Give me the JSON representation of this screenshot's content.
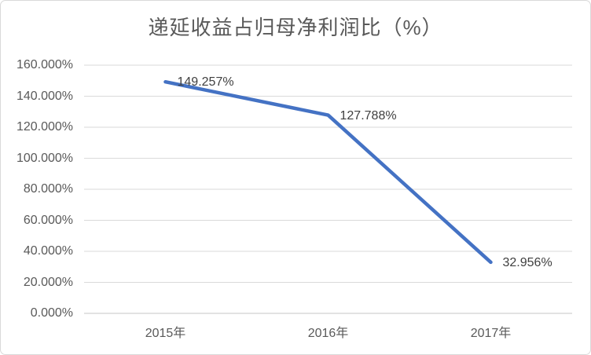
{
  "chart": {
    "title": "递延收益占归母净利润比（%）"
  },
  "chart_data": {
    "type": "line",
    "title": "递延收益占归母净利润比（%）",
    "categories": [
      "2015年",
      "2016年",
      "2017年"
    ],
    "values": [
      149.257,
      127.788,
      32.956
    ],
    "data_labels": [
      "149.257%",
      "127.788%",
      "32.956%"
    ],
    "y_tick_labels": [
      "160.000%",
      "140.000%",
      "120.000%",
      "100.000%",
      "80.000%",
      "60.000%",
      "40.000%",
      "20.000%",
      "0.000%"
    ],
    "ylim": [
      0,
      160
    ],
    "y_step": 20,
    "xlabel": "",
    "ylabel": "",
    "grid": true,
    "legend": false,
    "colors": {
      "line": "#4472C4",
      "gridline": "#DADADA",
      "axis_line": "#C6C6C6",
      "title_text": "#595959",
      "tick_text": "#595959",
      "data_label_text": "#404040",
      "background": "#FFFFFF",
      "border": "#D9D9D9"
    }
  }
}
